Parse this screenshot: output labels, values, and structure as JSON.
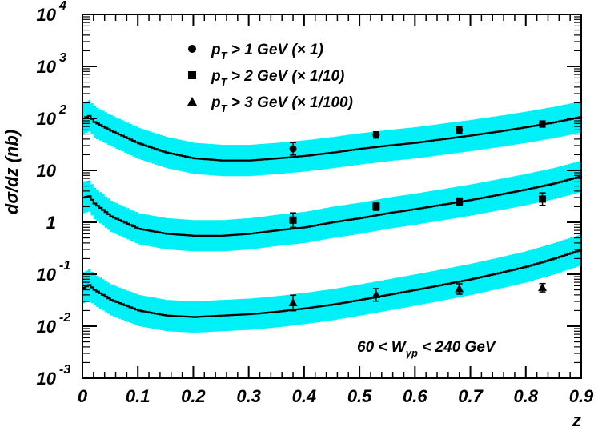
{
  "chart_data": {
    "type": "line",
    "xlabel": "z",
    "ylabel": "dσ/dz (nb)",
    "xlim": [
      0,
      0.9
    ],
    "ylim": [
      0.001,
      10000
    ],
    "y_scale": "log",
    "x_ticks": [
      "0",
      "0.1",
      "0.2",
      "0.3",
      "0.4",
      "0.5",
      "0.6",
      "0.7",
      "0.8",
      "0.9"
    ],
    "y_ticks": [
      {
        "value": 10000,
        "base": "10",
        "exp": "4"
      },
      {
        "value": 1000,
        "base": "10",
        "exp": "3"
      },
      {
        "value": 100,
        "base": "10",
        "exp": "2"
      },
      {
        "value": 10,
        "base": "10",
        "exp": ""
      },
      {
        "value": 1,
        "base": "1",
        "exp": ""
      },
      {
        "value": 0.1,
        "base": "10",
        "exp": "-1"
      },
      {
        "value": 0.01,
        "base": "10",
        "exp": "-2"
      },
      {
        "value": 0.001,
        "base": "10",
        "exp": "-3"
      }
    ],
    "band_color": "#00f0f8",
    "line_color": "#000000",
    "annotation": {
      "main": "60 < W",
      "sub": "γp",
      "tail": " < 240 GeV"
    },
    "series": [
      {
        "name": "pT > 1 GeV (× 1)",
        "legend": {
          "p": "p",
          "sub": "T",
          "rest": " > 1 GeV (× 1)"
        },
        "marker": "circle",
        "curve": {
          "x": [
            0.0,
            0.01,
            0.02,
            0.05,
            0.1,
            0.15,
            0.2,
            0.25,
            0.3,
            0.35,
            0.4,
            0.45,
            0.5,
            0.55,
            0.6,
            0.65,
            0.7,
            0.75,
            0.8,
            0.85,
            0.9
          ],
          "y": [
            100,
            112,
            85,
            58,
            33,
            22,
            17,
            15.5,
            15.5,
            17,
            19,
            22,
            26,
            30,
            34,
            40,
            47,
            56,
            68,
            84,
            108
          ],
          "band_factor": 2.0
        },
        "points": {
          "x": [
            0.38,
            0.53,
            0.68,
            0.83
          ],
          "y": [
            26,
            48,
            60,
            78
          ],
          "err": [
            0.12,
            0.06,
            0.06,
            0.06
          ]
        }
      },
      {
        "name": "pT > 2 GeV (× 1/10)",
        "legend": {
          "p": "p",
          "sub": "T",
          "rest": " > 2 GeV (× 1/10)"
        },
        "marker": "square",
        "curve": {
          "x": [
            0.0,
            0.01,
            0.02,
            0.05,
            0.1,
            0.15,
            0.2,
            0.25,
            0.3,
            0.35,
            0.4,
            0.45,
            0.5,
            0.55,
            0.6,
            0.65,
            0.7,
            0.75,
            0.8,
            0.85,
            0.9
          ],
          "y": [
            3.0,
            3.2,
            2.3,
            1.3,
            0.75,
            0.6,
            0.55,
            0.55,
            0.6,
            0.7,
            0.8,
            1.0,
            1.2,
            1.5,
            1.8,
            2.2,
            2.7,
            3.4,
            4.3,
            5.6,
            7.8
          ],
          "band_factor": 2.0
        },
        "points": {
          "x": [
            0.38,
            0.53,
            0.68,
            0.83
          ],
          "y": [
            1.1,
            2.0,
            2.5,
            2.8
          ],
          "err": [
            0.14,
            0.07,
            0.07,
            0.12
          ]
        }
      },
      {
        "name": "pT > 3 GeV (× 1/100)",
        "legend": {
          "p": "p",
          "sub": "T",
          "rest": " > 3 GeV (× 1/100)"
        },
        "marker": "triangle",
        "curve": {
          "x": [
            0.0,
            0.01,
            0.02,
            0.05,
            0.1,
            0.15,
            0.2,
            0.25,
            0.3,
            0.35,
            0.4,
            0.45,
            0.5,
            0.55,
            0.6,
            0.65,
            0.7,
            0.75,
            0.8,
            0.85,
            0.9
          ],
          "y": [
            0.055,
            0.062,
            0.05,
            0.032,
            0.02,
            0.016,
            0.015,
            0.016,
            0.017,
            0.019,
            0.022,
            0.026,
            0.032,
            0.04,
            0.05,
            0.063,
            0.08,
            0.105,
            0.14,
            0.2,
            0.3
          ],
          "band_factor": 2.0
        },
        "points": {
          "x": [
            0.38,
            0.53,
            0.68,
            0.83
          ],
          "y": [
            0.028,
            0.04,
            0.052,
            0.055
          ],
          "err": [
            0.15,
            0.12,
            0.1,
            0.08
          ]
        }
      }
    ]
  }
}
